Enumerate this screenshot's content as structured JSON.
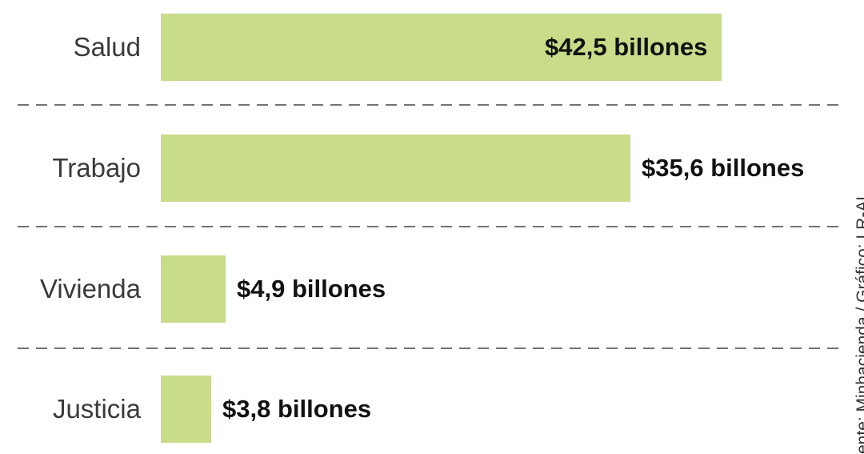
{
  "chart_data": {
    "type": "bar",
    "orientation": "horizontal",
    "categories": [
      "Salud",
      "Trabajo",
      "Vivienda",
      "Justicia"
    ],
    "values": [
      42.5,
      35.6,
      4.9,
      3.8
    ],
    "value_labels": [
      "$42,5 billones",
      "$35,6 billones",
      "$4,9 billones",
      "$3,8 billones"
    ],
    "unit": "billones",
    "xlim": [
      0,
      42.5
    ],
    "grid": false,
    "separators": "dashed",
    "legend": "none"
  },
  "colors": {
    "bar": "#c8dc8a",
    "separator": "#444444"
  },
  "source": "ente: Minhacienda / Gráfico: LR-AL"
}
